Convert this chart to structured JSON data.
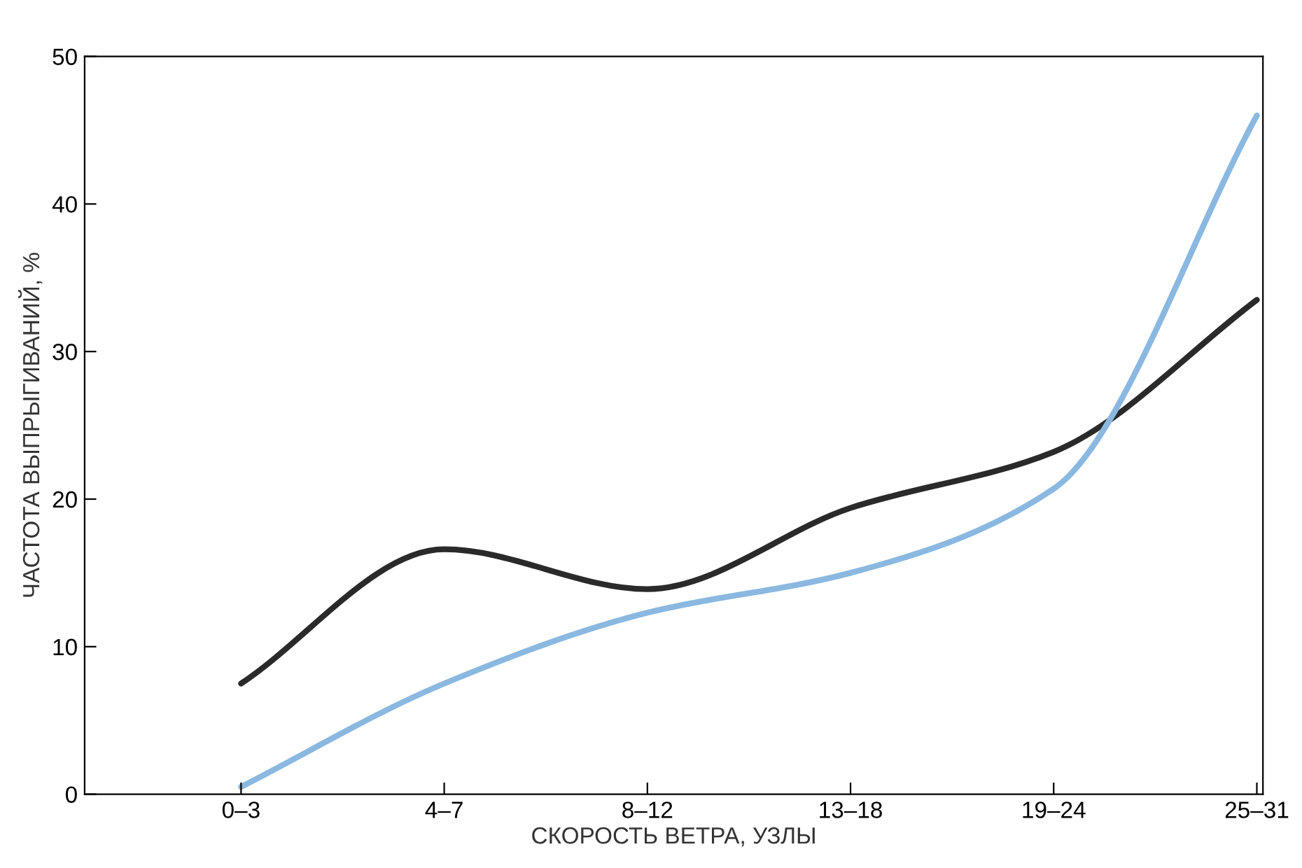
{
  "chart_data": {
    "type": "line",
    "xlabel": "СКОРОСТЬ ВЕТРА, УЗЛЫ",
    "ylabel": "ЧАСТОТА ВЫПРЫГИВАНИЙ, %",
    "categories": [
      "0–3",
      "4–7",
      "8–12",
      "13–18",
      "19–24",
      "25–31"
    ],
    "series": [
      {
        "color": "#2a2a2a",
        "values": [
          7.5,
          16.6,
          13.9,
          19.4,
          23.2,
          33.5
        ]
      },
      {
        "color": "#8ab8e0",
        "values": [
          0.5,
          7.5,
          12.3,
          15.0,
          20.7,
          46
        ]
      }
    ],
    "ylim": [
      0,
      50
    ],
    "yticks": [
      0,
      10,
      20,
      30,
      40,
      50
    ],
    "grid": false,
    "marker": "none",
    "line_style": "solid"
  }
}
